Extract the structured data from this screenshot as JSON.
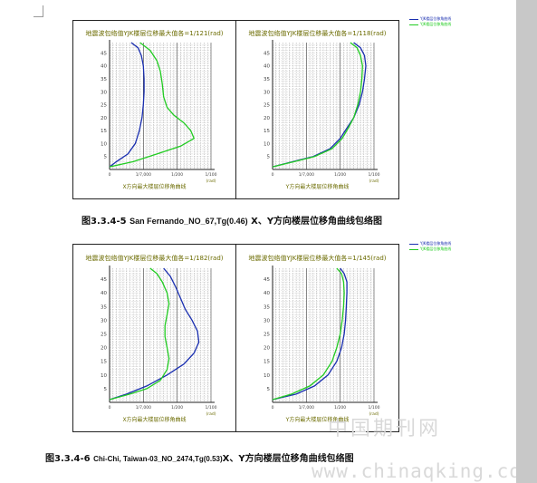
{
  "figures": [
    {
      "id": "fig1",
      "caption_num": "图3.3.4-5",
      "caption_quake": "San Fernando_NO_67,Tg(0.46)",
      "caption_tail": "X、Y方向楼层位移角曲线包络图",
      "legend": [
        {
          "label": "YJK楼层位移角曲线",
          "color": "#1a2fb0"
        },
        {
          "label": "YJK楼层位移角曲线",
          "color": "#22cc22"
        }
      ],
      "charts": [
        {
          "title": "地震波包络值YJK楼层位移最大值各=1/121(rad)",
          "xtitle": "X方向最大楼层位移角曲线",
          "xunit": "(rad)",
          "ticks_x": [
            {
              "v": 0,
              "label": "0"
            },
            {
              "v": 0.5,
              "label": "1/7,000"
            },
            {
              "v": 1.0,
              "label": "1/200"
            },
            {
              "v": 1.5,
              "label": "1/100"
            }
          ],
          "ticks_y": [
            5,
            10,
            15,
            20,
            25,
            30,
            35,
            40,
            45
          ],
          "ymax": 49,
          "series": [
            {
              "color": "#1a2fb0",
              "points": [
                [
                  0,
                  1
                ],
                [
                  0.1,
                  3
                ],
                [
                  0.27,
                  6
                ],
                [
                  0.38,
                  10
                ],
                [
                  0.44,
                  15
                ],
                [
                  0.48,
                  20
                ],
                [
                  0.5,
                  25
                ],
                [
                  0.51,
                  30
                ],
                [
                  0.51,
                  35
                ],
                [
                  0.5,
                  40
                ],
                [
                  0.47,
                  44
                ],
                [
                  0.42,
                  47
                ],
                [
                  0.32,
                  49
                ]
              ]
            },
            {
              "color": "#22cc22",
              "points": [
                [
                  0,
                  1
                ],
                [
                  0.35,
                  3
                ],
                [
                  0.7,
                  6
                ],
                [
                  1.05,
                  9
                ],
                [
                  1.25,
                  12
                ],
                [
                  1.2,
                  15
                ],
                [
                  1.1,
                  18
                ],
                [
                  0.95,
                  21
                ],
                [
                  0.85,
                  24
                ],
                [
                  0.8,
                  28
                ],
                [
                  0.78,
                  33
                ],
                [
                  0.75,
                  38
                ],
                [
                  0.7,
                  42
                ],
                [
                  0.6,
                  46
                ],
                [
                  0.45,
                  49
                ]
              ]
            }
          ]
        },
        {
          "title": "地震波包络值YJK楼层位移最大值各=1/118(rad)",
          "xtitle": "Y方向最大楼层位移角曲线",
          "xunit": "(rad)",
          "ticks_x": [
            {
              "v": 0,
              "label": "0"
            },
            {
              "v": 0.5,
              "label": "1/7,000"
            },
            {
              "v": 1.0,
              "label": "1/200"
            },
            {
              "v": 1.5,
              "label": "1/100"
            }
          ],
          "ticks_y": [
            5,
            10,
            15,
            20,
            25,
            30,
            35,
            40,
            45
          ],
          "ymax": 49,
          "series": [
            {
              "color": "#1a2fb0",
              "points": [
                [
                  0,
                  1
                ],
                [
                  0.3,
                  3
                ],
                [
                  0.6,
                  5
                ],
                [
                  0.85,
                  8
                ],
                [
                  1.0,
                  12
                ],
                [
                  1.1,
                  16
                ],
                [
                  1.2,
                  20
                ],
                [
                  1.28,
                  25
                ],
                [
                  1.33,
                  30
                ],
                [
                  1.36,
                  35
                ],
                [
                  1.38,
                  40
                ],
                [
                  1.36,
                  44
                ],
                [
                  1.3,
                  47
                ],
                [
                  1.2,
                  49
                ]
              ]
            },
            {
              "color": "#22cc22",
              "points": [
                [
                  0,
                  1
                ],
                [
                  0.32,
                  3
                ],
                [
                  0.62,
                  5
                ],
                [
                  0.88,
                  8
                ],
                [
                  1.03,
                  12
                ],
                [
                  1.12,
                  16
                ],
                [
                  1.2,
                  20
                ],
                [
                  1.26,
                  25
                ],
                [
                  1.3,
                  30
                ],
                [
                  1.32,
                  35
                ],
                [
                  1.33,
                  40
                ],
                [
                  1.3,
                  44
                ],
                [
                  1.25,
                  47
                ],
                [
                  1.15,
                  49
                ]
              ]
            }
          ]
        }
      ]
    },
    {
      "id": "fig2",
      "caption_num": "图3.3.4-6",
      "caption_quake": "Chi-Chi, Taiwan-03_NO_2474,Tg(0.53)",
      "caption_tail": "X、Y方向楼层位移角曲线包络图",
      "legend": [
        {
          "label": "YJK楼层位移角曲线",
          "color": "#1a2fb0"
        },
        {
          "label": "YJK楼层位移角曲线",
          "color": "#22cc22"
        }
      ],
      "charts": [
        {
          "title": "地震波包络值YJK楼层位移最大值各=1/182(rad)",
          "xtitle": "X方向最大楼层位移角曲线",
          "xunit": "(rad)",
          "ticks_x": [
            {
              "v": 0,
              "label": "0"
            },
            {
              "v": 0.5,
              "label": "1/7,000"
            },
            {
              "v": 1.0,
              "label": "1/200"
            },
            {
              "v": 1.5,
              "label": "1/100"
            }
          ],
          "ticks_y": [
            5,
            10,
            15,
            20,
            25,
            30,
            35,
            40,
            45
          ],
          "ymax": 49,
          "series": [
            {
              "color": "#1a2fb0",
              "points": [
                [
                  0,
                  1
                ],
                [
                  0.25,
                  3
                ],
                [
                  0.55,
                  6
                ],
                [
                  0.85,
                  10
                ],
                [
                  1.1,
                  14
                ],
                [
                  1.25,
                  18
                ],
                [
                  1.32,
                  22
                ],
                [
                  1.3,
                  26
                ],
                [
                  1.22,
                  30
                ],
                [
                  1.12,
                  34
                ],
                [
                  1.05,
                  38
                ],
                [
                  0.98,
                  42
                ],
                [
                  0.9,
                  46
                ],
                [
                  0.8,
                  49
                ]
              ]
            },
            {
              "color": "#22cc22",
              "points": [
                [
                  0,
                  1
                ],
                [
                  0.3,
                  3
                ],
                [
                  0.55,
                  5
                ],
                [
                  0.75,
                  8
                ],
                [
                  0.85,
                  12
                ],
                [
                  0.88,
                  16
                ],
                [
                  0.85,
                  20
                ],
                [
                  0.82,
                  24
                ],
                [
                  0.82,
                  28
                ],
                [
                  0.85,
                  32
                ],
                [
                  0.88,
                  36
                ],
                [
                  0.85,
                  40
                ],
                [
                  0.78,
                  44
                ],
                [
                  0.7,
                  47
                ],
                [
                  0.6,
                  49
                ]
              ]
            }
          ]
        },
        {
          "title": "地震波包络值YJK楼层位移最大值各=1/145(rad)",
          "xtitle": "Y方向最大楼层位移角曲线",
          "xunit": "(rad)",
          "ticks_x": [
            {
              "v": 0,
              "label": "0"
            },
            {
              "v": 0.5,
              "label": "1/7,000"
            },
            {
              "v": 1.0,
              "label": "1/200"
            },
            {
              "v": 1.5,
              "label": "1/100"
            }
          ],
          "ticks_y": [
            5,
            10,
            15,
            20,
            25,
            30,
            35,
            40,
            45
          ],
          "ymax": 49,
          "series": [
            {
              "color": "#1a2fb0",
              "points": [
                [
                  0,
                  1
                ],
                [
                  0.35,
                  3
                ],
                [
                  0.62,
                  6
                ],
                [
                  0.82,
                  10
                ],
                [
                  0.95,
                  15
                ],
                [
                  1.02,
                  20
                ],
                [
                  1.06,
                  25
                ],
                [
                  1.08,
                  30
                ],
                [
                  1.09,
                  35
                ],
                [
                  1.1,
                  40
                ],
                [
                  1.1,
                  44
                ],
                [
                  1.06,
                  47
                ],
                [
                  1.0,
                  49
                ]
              ]
            },
            {
              "color": "#22cc22",
              "points": [
                [
                  0,
                  1
                ],
                [
                  0.28,
                  3
                ],
                [
                  0.55,
                  6
                ],
                [
                  0.75,
                  10
                ],
                [
                  0.88,
                  15
                ],
                [
                  0.95,
                  20
                ],
                [
                  1.0,
                  25
                ],
                [
                  1.03,
                  30
                ],
                [
                  1.05,
                  35
                ],
                [
                  1.06,
                  40
                ],
                [
                  1.05,
                  44
                ],
                [
                  1.02,
                  47
                ],
                [
                  0.95,
                  49
                ]
              ]
            }
          ]
        }
      ]
    }
  ],
  "watermark": {
    "cn": "中国期刊网",
    "url": "www.chinaqking.com"
  }
}
